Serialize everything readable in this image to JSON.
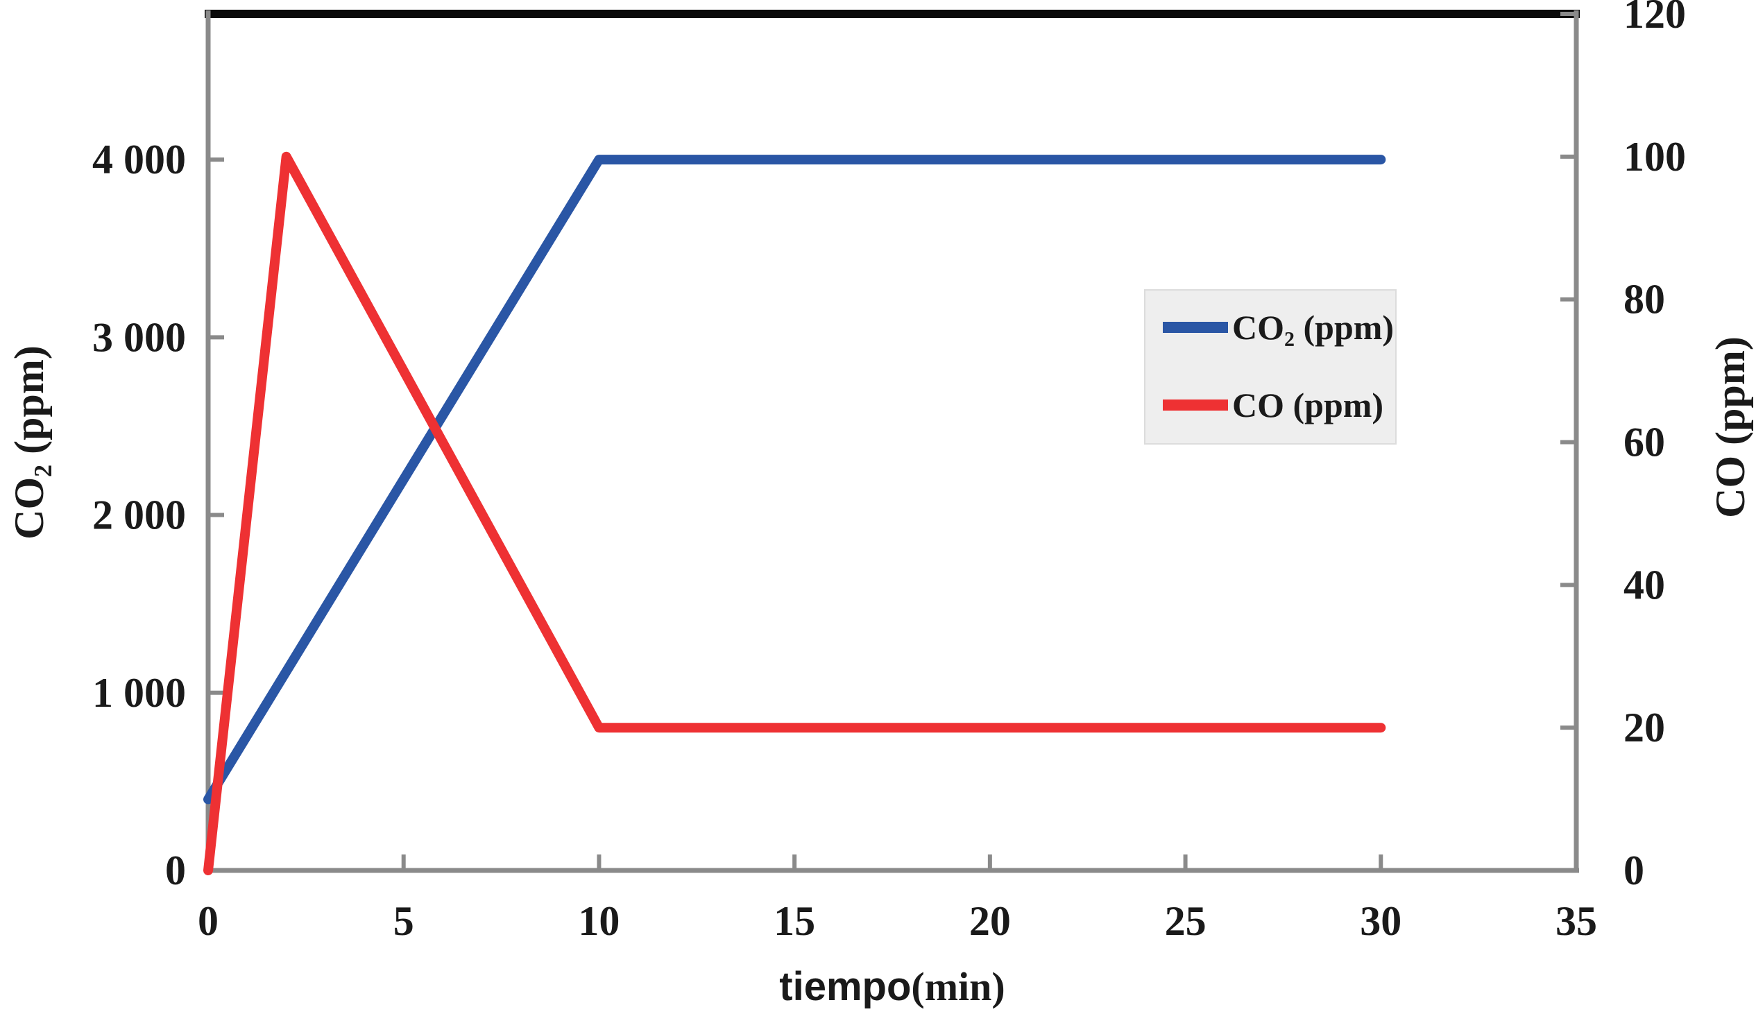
{
  "colors": {
    "background": "#ffffff",
    "axis_gray": "#8a8a8a",
    "top_border_black": "#0a0a0a",
    "text_ink": "#1a1a1a",
    "legend_background": "#eeeeee",
    "legend_border": "#dcdcdc",
    "co2_blue": "#2a56a5",
    "co_red": "#ee3133"
  },
  "chart_data": {
    "type": "line",
    "title": "",
    "xlabel": "tiempo(min)",
    "x": {
      "label_primary": "tiempo",
      "label_secondary": "(min)",
      "min": 0,
      "max": 35,
      "ticks": [
        0,
        5,
        10,
        15,
        20,
        25,
        30,
        35
      ]
    },
    "y_left": {
      "label": "CO₂ (ppm)",
      "min": 0,
      "max": 4820,
      "tick_values": [
        0,
        1000,
        2000,
        3000,
        4000
      ],
      "tick_labels": [
        "0",
        "1 000",
        "2 000",
        "3 000",
        "4 000"
      ]
    },
    "y_right": {
      "label": "CO (ppm)",
      "min": 0,
      "max": 120,
      "tick_values": [
        0,
        20,
        40,
        60,
        80,
        100,
        120
      ],
      "tick_labels": [
        "0",
        "20",
        "40",
        "60",
        "80",
        "100",
        "120"
      ]
    },
    "grid": false,
    "legend_position": "center-right",
    "series": [
      {
        "name": "CO₂ (ppm)",
        "axis": "left",
        "color": "#2a56a5",
        "points": [
          [
            0,
            400
          ],
          [
            10,
            4000
          ],
          [
            30,
            4000
          ]
        ]
      },
      {
        "name": "CO (ppm)",
        "axis": "right",
        "color": "#ee3133",
        "points": [
          [
            0,
            0
          ],
          [
            2,
            100
          ],
          [
            10,
            20
          ],
          [
            30,
            20
          ]
        ]
      }
    ]
  }
}
